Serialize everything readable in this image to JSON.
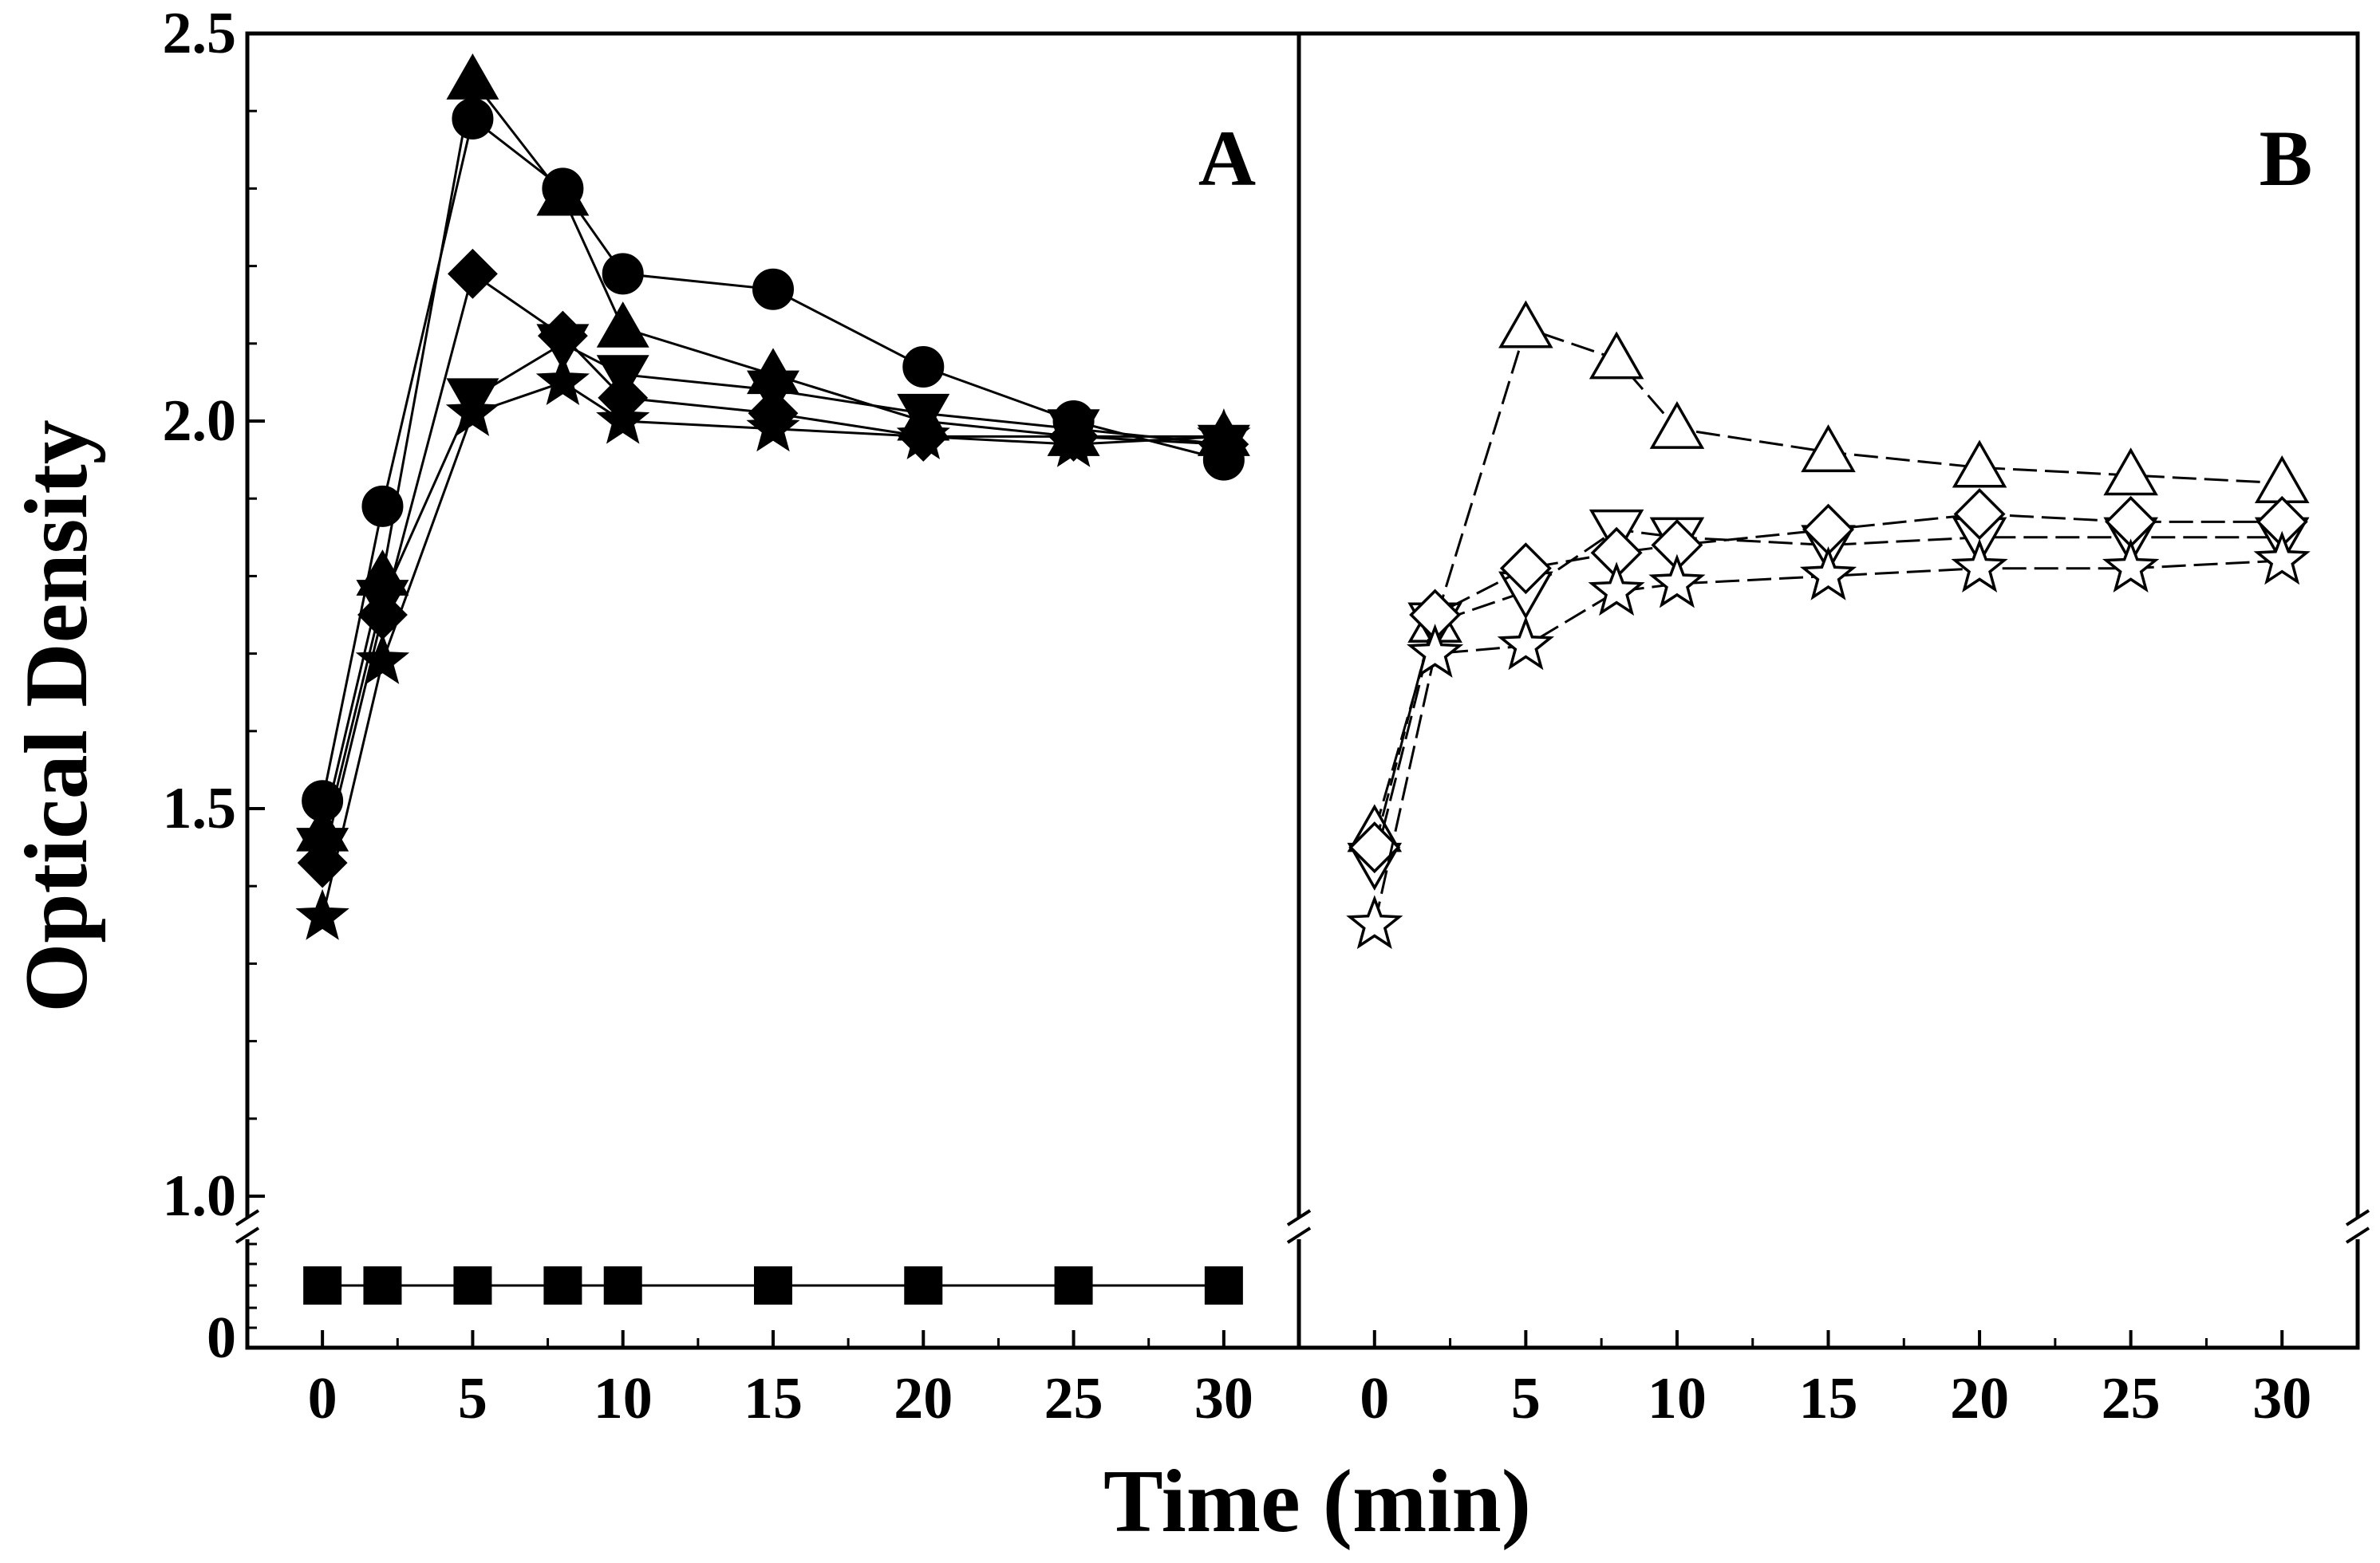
{
  "chart_data": [
    {
      "panel": "A",
      "type": "line",
      "label": "A",
      "xlabel": "Time (min)",
      "ylabel": "Optical Density",
      "xlim": [
        -2.5,
        32.5
      ],
      "ylim": [
        1.0,
        2.5
      ],
      "broken_axis": {
        "lower_tick_label": "0",
        "break_at": 1.0
      },
      "xticks": [
        0,
        5,
        10,
        15,
        20,
        25,
        30
      ],
      "yticks": [
        1.0,
        1.5,
        2.0,
        2.5
      ],
      "ytick_labels": [
        "1.0",
        "1.5",
        "2.0",
        "2.5"
      ],
      "x": [
        0,
        2,
        5,
        8,
        10,
        15,
        20,
        25,
        30
      ],
      "series": [
        {
          "name": "filled-circle",
          "marker": "circle",
          "filled": true,
          "values": [
            1.51,
            1.89,
            2.39,
            2.3,
            2.19,
            2.17,
            2.07,
            2.0,
            1.95
          ]
        },
        {
          "name": "filled-triangle-up",
          "marker": "triangle-up",
          "filled": true,
          "values": [
            1.47,
            1.8,
            2.44,
            2.29,
            2.12,
            2.06,
            2.0,
            1.98,
            1.98
          ]
        },
        {
          "name": "filled-diamond",
          "marker": "diamond",
          "filled": true,
          "values": [
            1.43,
            1.75,
            2.19,
            2.11,
            2.03,
            2.01,
            1.98,
            1.98,
            1.97
          ]
        },
        {
          "name": "filled-triangle-down",
          "marker": "triangle-down",
          "filled": true,
          "values": [
            1.45,
            1.77,
            2.03,
            2.1,
            2.06,
            2.04,
            2.01,
            1.99,
            1.97
          ]
        },
        {
          "name": "filled-star",
          "marker": "star",
          "filled": true,
          "values": [
            1.36,
            1.69,
            2.01,
            2.05,
            2.0,
            1.99,
            1.98,
            1.97,
            1.98
          ]
        },
        {
          "name": "filled-square",
          "marker": "square",
          "filled": true,
          "zero_band": true,
          "values": [
            0,
            0,
            0,
            0,
            0,
            0,
            0,
            0,
            0
          ]
        }
      ]
    },
    {
      "panel": "B",
      "type": "line",
      "label": "B",
      "xlabel": "Time (min)",
      "xlim": [
        -2.5,
        32.5
      ],
      "ylim": [
        1.0,
        2.5
      ],
      "xticks": [
        0,
        5,
        10,
        15,
        20,
        25,
        30
      ],
      "x": [
        0,
        2,
        5,
        8,
        10,
        15,
        20,
        25,
        30
      ],
      "series": [
        {
          "name": "open-triangle-up",
          "marker": "triangle-up",
          "filled": false,
          "dashed": true,
          "values": [
            1.47,
            1.74,
            2.12,
            2.08,
            1.99,
            1.96,
            1.94,
            1.93,
            1.92
          ]
        },
        {
          "name": "open-triangle-down",
          "marker": "triangle-down",
          "filled": false,
          "dashed": true,
          "values": [
            1.43,
            1.74,
            1.78,
            1.86,
            1.85,
            1.84,
            1.85,
            1.85,
            1.85
          ]
        },
        {
          "name": "open-diamond",
          "marker": "diamond",
          "filled": false,
          "dashed": true,
          "values": [
            1.45,
            1.75,
            1.81,
            1.83,
            1.84,
            1.86,
            1.88,
            1.87,
            1.87
          ]
        },
        {
          "name": "open-star",
          "marker": "star",
          "filled": false,
          "dashed": true,
          "values": [
            1.35,
            1.7,
            1.71,
            1.78,
            1.79,
            1.8,
            1.81,
            1.81,
            1.82
          ]
        }
      ]
    }
  ],
  "shared": {
    "xlabel": "Time (min)",
    "ylabel": "Optical Density",
    "zero_label": "0"
  }
}
